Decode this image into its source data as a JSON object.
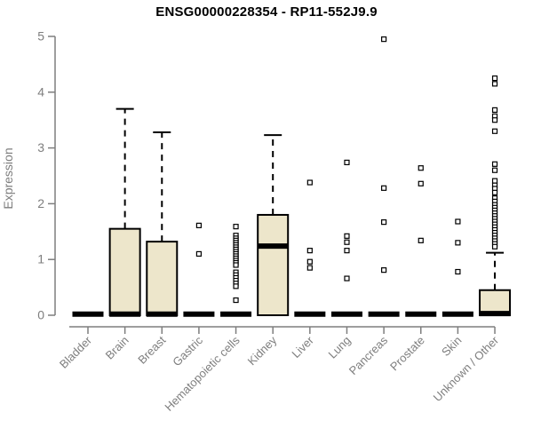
{
  "chart_data": {
    "type": "boxplot",
    "title": "ENSG00000228354 - RP11-552J9.9",
    "ylabel": "Expression",
    "xlabel": "",
    "ylim": [
      0,
      5
    ],
    "yticks": [
      0,
      1,
      2,
      3,
      4,
      5
    ],
    "grid": false,
    "legend": "none",
    "categories": [
      "Bladder",
      "Brain",
      "Breast",
      "Gastric",
      "Hematopoietic cells",
      "Kidney",
      "Liver",
      "Lung",
      "Pancreas",
      "Prostate",
      "Skin",
      "Unknown / Other"
    ],
    "series": [
      {
        "category": "Bladder",
        "q1": 0,
        "median": 0.02,
        "q3": 0,
        "whisker_low": 0,
        "whisker_high": 0,
        "outliers": []
      },
      {
        "category": "Brain",
        "q1": 0,
        "median": 0.02,
        "q3": 1.55,
        "whisker_low": 0,
        "whisker_high": 3.7,
        "outliers": []
      },
      {
        "category": "Breast",
        "q1": 0,
        "median": 0.02,
        "q3": 1.32,
        "whisker_low": 0,
        "whisker_high": 3.28,
        "outliers": []
      },
      {
        "category": "Gastric",
        "q1": 0,
        "median": 0.02,
        "q3": 0,
        "whisker_low": 0,
        "whisker_high": 0,
        "outliers": [
          1.61,
          1.1
        ]
      },
      {
        "category": "Hematopoietic cells",
        "q1": 0,
        "median": 0.02,
        "q3": 0,
        "whisker_low": 0,
        "whisker_high": 0,
        "outliers": [
          1.59,
          1.43,
          1.38,
          1.34,
          1.3,
          1.26,
          1.22,
          1.18,
          1.14,
          1.1,
          1.06,
          1.02,
          0.98,
          0.94,
          0.9,
          0.77,
          0.72,
          0.67,
          0.62,
          0.57,
          0.52,
          0.27
        ]
      },
      {
        "category": "Kidney",
        "q1": 0,
        "median": 1.24,
        "q3": 1.8,
        "whisker_low": 0,
        "whisker_high": 3.23,
        "outliers": []
      },
      {
        "category": "Liver",
        "q1": 0,
        "median": 0.02,
        "q3": 0,
        "whisker_low": 0,
        "whisker_high": 0,
        "outliers": [
          2.38,
          1.16,
          0.96,
          0.85
        ]
      },
      {
        "category": "Lung",
        "q1": 0,
        "median": 0.02,
        "q3": 0,
        "whisker_low": 0,
        "whisker_high": 0,
        "outliers": [
          2.74,
          1.42,
          1.31,
          1.16,
          0.66
        ]
      },
      {
        "category": "Pancreas",
        "q1": 0,
        "median": 0.02,
        "q3": 0,
        "whisker_low": 0,
        "whisker_high": 0,
        "outliers": [
          4.95,
          2.28,
          1.67,
          0.81
        ]
      },
      {
        "category": "Prostate",
        "q1": 0,
        "median": 0.02,
        "q3": 0,
        "whisker_low": 0,
        "whisker_high": 0,
        "outliers": [
          2.64,
          2.36,
          1.34
        ]
      },
      {
        "category": "Skin",
        "q1": 0,
        "median": 0.02,
        "q3": 0,
        "whisker_low": 0,
        "whisker_high": 0,
        "outliers": [
          1.68,
          1.3,
          0.78
        ]
      },
      {
        "category": "Unknown / Other",
        "q1": 0,
        "median": 0.03,
        "q3": 0.45,
        "whisker_low": 0,
        "whisker_high": 1.12,
        "outliers": [
          4.25,
          4.15,
          3.68,
          3.57,
          3.5,
          3.3,
          2.71,
          2.6,
          2.41,
          2.33,
          2.27,
          2.2,
          2.1,
          2.04,
          1.98,
          1.93,
          1.88,
          1.83,
          1.78,
          1.73,
          1.68,
          1.63,
          1.58,
          1.53,
          1.48,
          1.43,
          1.38,
          1.33,
          1.28,
          1.23
        ]
      }
    ],
    "colors": {
      "box_fill": "#EDE6CB",
      "box_border": "#000000",
      "median": "#000000",
      "whisker": "#000000",
      "outlier_fill": "#FFFFFF",
      "outlier_border": "#000000",
      "axis": "#7e7e7e",
      "tick_label": "#7e7e7e",
      "title": "#000000",
      "background": "#FFFFFF"
    }
  }
}
